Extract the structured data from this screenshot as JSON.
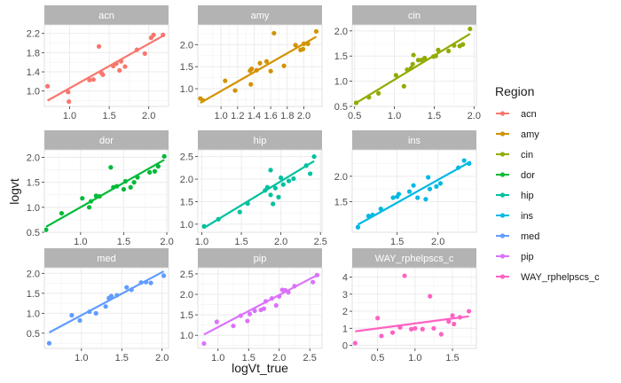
{
  "chart_data": {
    "type": "scatter",
    "xlabel": "logVt_true",
    "ylabel": "logvt",
    "legend": {
      "title": "Region",
      "position": "right"
    },
    "grid": true,
    "panels": [
      {
        "name": "acn",
        "color": "#F8766D",
        "xlim": [
          0.68,
          2.25
        ],
        "xticks": [
          1.0,
          1.5,
          2.0
        ],
        "ylim": [
          0.68,
          2.38
        ],
        "yticks": [
          1.0,
          1.4,
          1.8,
          2.2
        ],
        "points": [
          [
            0.72,
            1.1
          ],
          [
            0.98,
            0.98
          ],
          [
            0.99,
            0.78
          ],
          [
            1.25,
            1.23
          ],
          [
            1.3,
            1.24
          ],
          [
            1.37,
            1.93
          ],
          [
            1.4,
            1.38
          ],
          [
            1.42,
            1.34
          ],
          [
            1.55,
            1.52
          ],
          [
            1.59,
            1.57
          ],
          [
            1.63,
            1.43
          ],
          [
            1.65,
            1.62
          ],
          [
            1.7,
            1.51
          ],
          [
            1.85,
            1.86
          ],
          [
            1.95,
            1.78
          ],
          [
            2.03,
            2.11
          ],
          [
            2.06,
            2.17
          ],
          [
            2.18,
            2.17
          ]
        ],
        "fit": [
          [
            0.72,
            0.8
          ],
          [
            2.18,
            2.15
          ]
        ]
      },
      {
        "name": "amy",
        "color": "#D39200",
        "xlim": [
          0.72,
          2.22
        ],
        "xticks": [
          1.0,
          1.2,
          1.4,
          1.6,
          1.8,
          2.0
        ],
        "ylim": [
          0.6,
          2.45
        ],
        "yticks": [
          1.0,
          1.5,
          2.0
        ],
        "points": [
          [
            0.75,
            0.78
          ],
          [
            0.78,
            0.74
          ],
          [
            1.05,
            1.18
          ],
          [
            1.17,
            0.96
          ],
          [
            1.35,
            1.41
          ],
          [
            1.36,
            1.1
          ],
          [
            1.37,
            1.45
          ],
          [
            1.43,
            1.42
          ],
          [
            1.47,
            1.58
          ],
          [
            1.55,
            1.62
          ],
          [
            1.6,
            1.4
          ],
          [
            1.64,
            2.26
          ],
          [
            1.76,
            1.52
          ],
          [
            1.9,
            1.99
          ],
          [
            1.96,
            1.88
          ],
          [
            1.99,
            1.9
          ],
          [
            2.0,
            2.02
          ],
          [
            2.05,
            2.02
          ],
          [
            2.15,
            2.3
          ]
        ],
        "fit": [
          [
            0.75,
            0.68
          ],
          [
            2.15,
            2.18
          ]
        ]
      },
      {
        "name": "cin",
        "color": "#93AA00",
        "xlim": [
          0.47,
          2.03
        ],
        "xticks": [
          0.5,
          1.0,
          1.5,
          2.0
        ],
        "ylim": [
          0.5,
          2.12
        ],
        "yticks": [
          0.5,
          1.0,
          1.5,
          2.0
        ],
        "points": [
          [
            0.52,
            0.57
          ],
          [
            0.68,
            0.68
          ],
          [
            0.8,
            0.76
          ],
          [
            1.02,
            1.12
          ],
          [
            1.12,
            0.9
          ],
          [
            1.16,
            1.23
          ],
          [
            1.21,
            1.26
          ],
          [
            1.23,
            1.34
          ],
          [
            1.24,
            1.52
          ],
          [
            1.3,
            1.42
          ],
          [
            1.34,
            1.42
          ],
          [
            1.38,
            1.46
          ],
          [
            1.49,
            1.49
          ],
          [
            1.52,
            1.5
          ],
          [
            1.55,
            1.62
          ],
          [
            1.68,
            1.6
          ],
          [
            1.75,
            1.71
          ],
          [
            1.82,
            1.7
          ],
          [
            1.86,
            1.73
          ],
          [
            1.95,
            2.04
          ]
        ],
        "fit": [
          [
            0.52,
            0.57
          ],
          [
            1.95,
            1.94
          ]
        ]
      },
      {
        "name": "dor",
        "color": "#00BA38",
        "xlim": [
          0.58,
          2.02
        ],
        "xticks": [
          1.0,
          1.5,
          2.0
        ],
        "ylim": [
          0.5,
          2.15
        ],
        "yticks": [
          0.5,
          1.0,
          1.5,
          2.0
        ],
        "points": [
          [
            0.6,
            0.55
          ],
          [
            0.78,
            0.88
          ],
          [
            1.02,
            1.18
          ],
          [
            1.1,
            1.0
          ],
          [
            1.12,
            1.12
          ],
          [
            1.18,
            1.23
          ],
          [
            1.22,
            1.22
          ],
          [
            1.35,
            1.8
          ],
          [
            1.38,
            1.4
          ],
          [
            1.42,
            1.42
          ],
          [
            1.5,
            1.36
          ],
          [
            1.52,
            1.52
          ],
          [
            1.58,
            1.4
          ],
          [
            1.62,
            1.5
          ],
          [
            1.66,
            1.6
          ],
          [
            1.8,
            1.7
          ],
          [
            1.86,
            1.72
          ],
          [
            1.9,
            1.82
          ],
          [
            1.97,
            2.02
          ]
        ],
        "fit": [
          [
            0.6,
            0.61
          ],
          [
            1.97,
            1.95
          ]
        ]
      },
      {
        "name": "hip",
        "color": "#00C19F",
        "xlim": [
          0.95,
          2.52
        ],
        "xticks": [
          1.0,
          1.5,
          2.0,
          2.5
        ],
        "ylim": [
          0.82,
          2.65
        ],
        "yticks": [
          1.0,
          1.5,
          2.0,
          2.5
        ],
        "points": [
          [
            1.03,
            0.95
          ],
          [
            1.21,
            1.11
          ],
          [
            1.48,
            1.27
          ],
          [
            1.58,
            1.46
          ],
          [
            1.8,
            1.75
          ],
          [
            1.83,
            1.82
          ],
          [
            1.87,
            1.65
          ],
          [
            1.87,
            2.2
          ],
          [
            1.9,
            1.45
          ],
          [
            1.93,
            1.8
          ],
          [
            1.97,
            1.6
          ],
          [
            2.0,
            2.03
          ],
          [
            2.03,
            1.88
          ],
          [
            2.1,
            1.96
          ],
          [
            2.16,
            2.01
          ],
          [
            2.32,
            2.3
          ],
          [
            2.37,
            2.12
          ],
          [
            2.42,
            2.5
          ]
        ],
        "fit": [
          [
            1.03,
            0.92
          ],
          [
            2.42,
            2.4
          ]
        ]
      },
      {
        "name": "ins",
        "color": "#00B9E3",
        "xlim": [
          0.95,
          2.47
        ],
        "xticks": [
          1.5,
          2.0
        ],
        "ylim": [
          0.9,
          2.52
        ],
        "yticks": [
          1.5,
          2.0
        ],
        "points": [
          [
            1.02,
            1.0
          ],
          [
            1.15,
            1.22
          ],
          [
            1.2,
            1.24
          ],
          [
            1.3,
            1.36
          ],
          [
            1.45,
            1.58
          ],
          [
            1.5,
            1.6
          ],
          [
            1.52,
            1.65
          ],
          [
            1.65,
            1.7
          ],
          [
            1.7,
            1.82
          ],
          [
            1.75,
            1.58
          ],
          [
            1.85,
            1.55
          ],
          [
            1.88,
            1.98
          ],
          [
            1.9,
            1.75
          ],
          [
            1.98,
            1.8
          ],
          [
            2.03,
            1.86
          ],
          [
            2.25,
            2.17
          ],
          [
            2.32,
            2.31
          ],
          [
            2.38,
            2.25
          ]
        ],
        "fit": [
          [
            1.02,
            1.05
          ],
          [
            2.4,
            2.29
          ]
        ]
      },
      {
        "name": "med",
        "color": "#619CFF",
        "xlim": [
          0.54,
          2.08
        ],
        "xticks": [
          1.0,
          1.5,
          2.0
        ],
        "ylim": [
          0.12,
          2.14
        ],
        "yticks": [
          0.5,
          1.0,
          1.5,
          2.0
        ],
        "points": [
          [
            0.6,
            0.25
          ],
          [
            0.88,
            0.95
          ],
          [
            0.98,
            0.82
          ],
          [
            1.1,
            1.04
          ],
          [
            1.18,
            1.0
          ],
          [
            1.3,
            1.17
          ],
          [
            1.34,
            1.38
          ],
          [
            1.37,
            1.43
          ],
          [
            1.44,
            1.45
          ],
          [
            1.56,
            1.65
          ],
          [
            1.62,
            1.59
          ],
          [
            1.74,
            1.77
          ],
          [
            1.8,
            1.78
          ],
          [
            1.86,
            1.76
          ],
          [
            2.02,
            1.94
          ]
        ],
        "fit": [
          [
            0.6,
            0.52
          ],
          [
            2.02,
            2.05
          ]
        ]
      },
      {
        "name": "pip",
        "color": "#DB72FB",
        "xlim": [
          0.67,
          2.7
        ],
        "xticks": [
          1.0,
          1.5,
          2.0,
          2.5
        ],
        "ylim": [
          0.68,
          2.65
        ],
        "yticks": [
          1.0,
          1.5,
          2.0,
          2.5
        ],
        "points": [
          [
            0.77,
            0.8
          ],
          [
            0.98,
            1.33
          ],
          [
            1.25,
            1.23
          ],
          [
            1.37,
            1.48
          ],
          [
            1.48,
            1.35
          ],
          [
            1.52,
            1.52
          ],
          [
            1.6,
            1.6
          ],
          [
            1.7,
            1.62
          ],
          [
            1.75,
            1.65
          ],
          [
            1.78,
            1.83
          ],
          [
            1.88,
            1.9
          ],
          [
            1.95,
            1.73
          ],
          [
            2.0,
            1.95
          ],
          [
            2.05,
            2.11
          ],
          [
            2.1,
            2.1
          ],
          [
            2.15,
            2.05
          ],
          [
            2.25,
            2.2
          ],
          [
            2.55,
            2.3
          ],
          [
            2.62,
            2.47
          ]
        ],
        "fit": [
          [
            0.77,
            1.02
          ],
          [
            2.62,
            2.47
          ]
        ]
      },
      {
        "name": "WAY_rphelpscs_c",
        "color": "#FF61C3",
        "xlim": [
          0.16,
          1.82
        ],
        "xticks": [
          0.5,
          1.0,
          1.5
        ],
        "ylim": [
          -0.18,
          4.55
        ],
        "yticks": [
          0,
          1,
          2,
          3,
          4
        ],
        "points": [
          [
            0.2,
            0.13
          ],
          [
            0.5,
            1.6
          ],
          [
            0.55,
            0.55
          ],
          [
            0.7,
            0.75
          ],
          [
            0.8,
            1.05
          ],
          [
            0.86,
            4.08
          ],
          [
            0.95,
            0.95
          ],
          [
            1.0,
            1.0
          ],
          [
            1.1,
            0.95
          ],
          [
            1.2,
            2.88
          ],
          [
            1.25,
            1.0
          ],
          [
            1.35,
            0.65
          ],
          [
            1.45,
            1.4
          ],
          [
            1.5,
            1.75
          ],
          [
            1.52,
            1.25
          ],
          [
            1.6,
            1.65
          ],
          [
            1.72,
            2.0
          ]
        ],
        "fit": [
          [
            0.2,
            0.82
          ],
          [
            1.72,
            1.7
          ]
        ]
      }
    ]
  }
}
